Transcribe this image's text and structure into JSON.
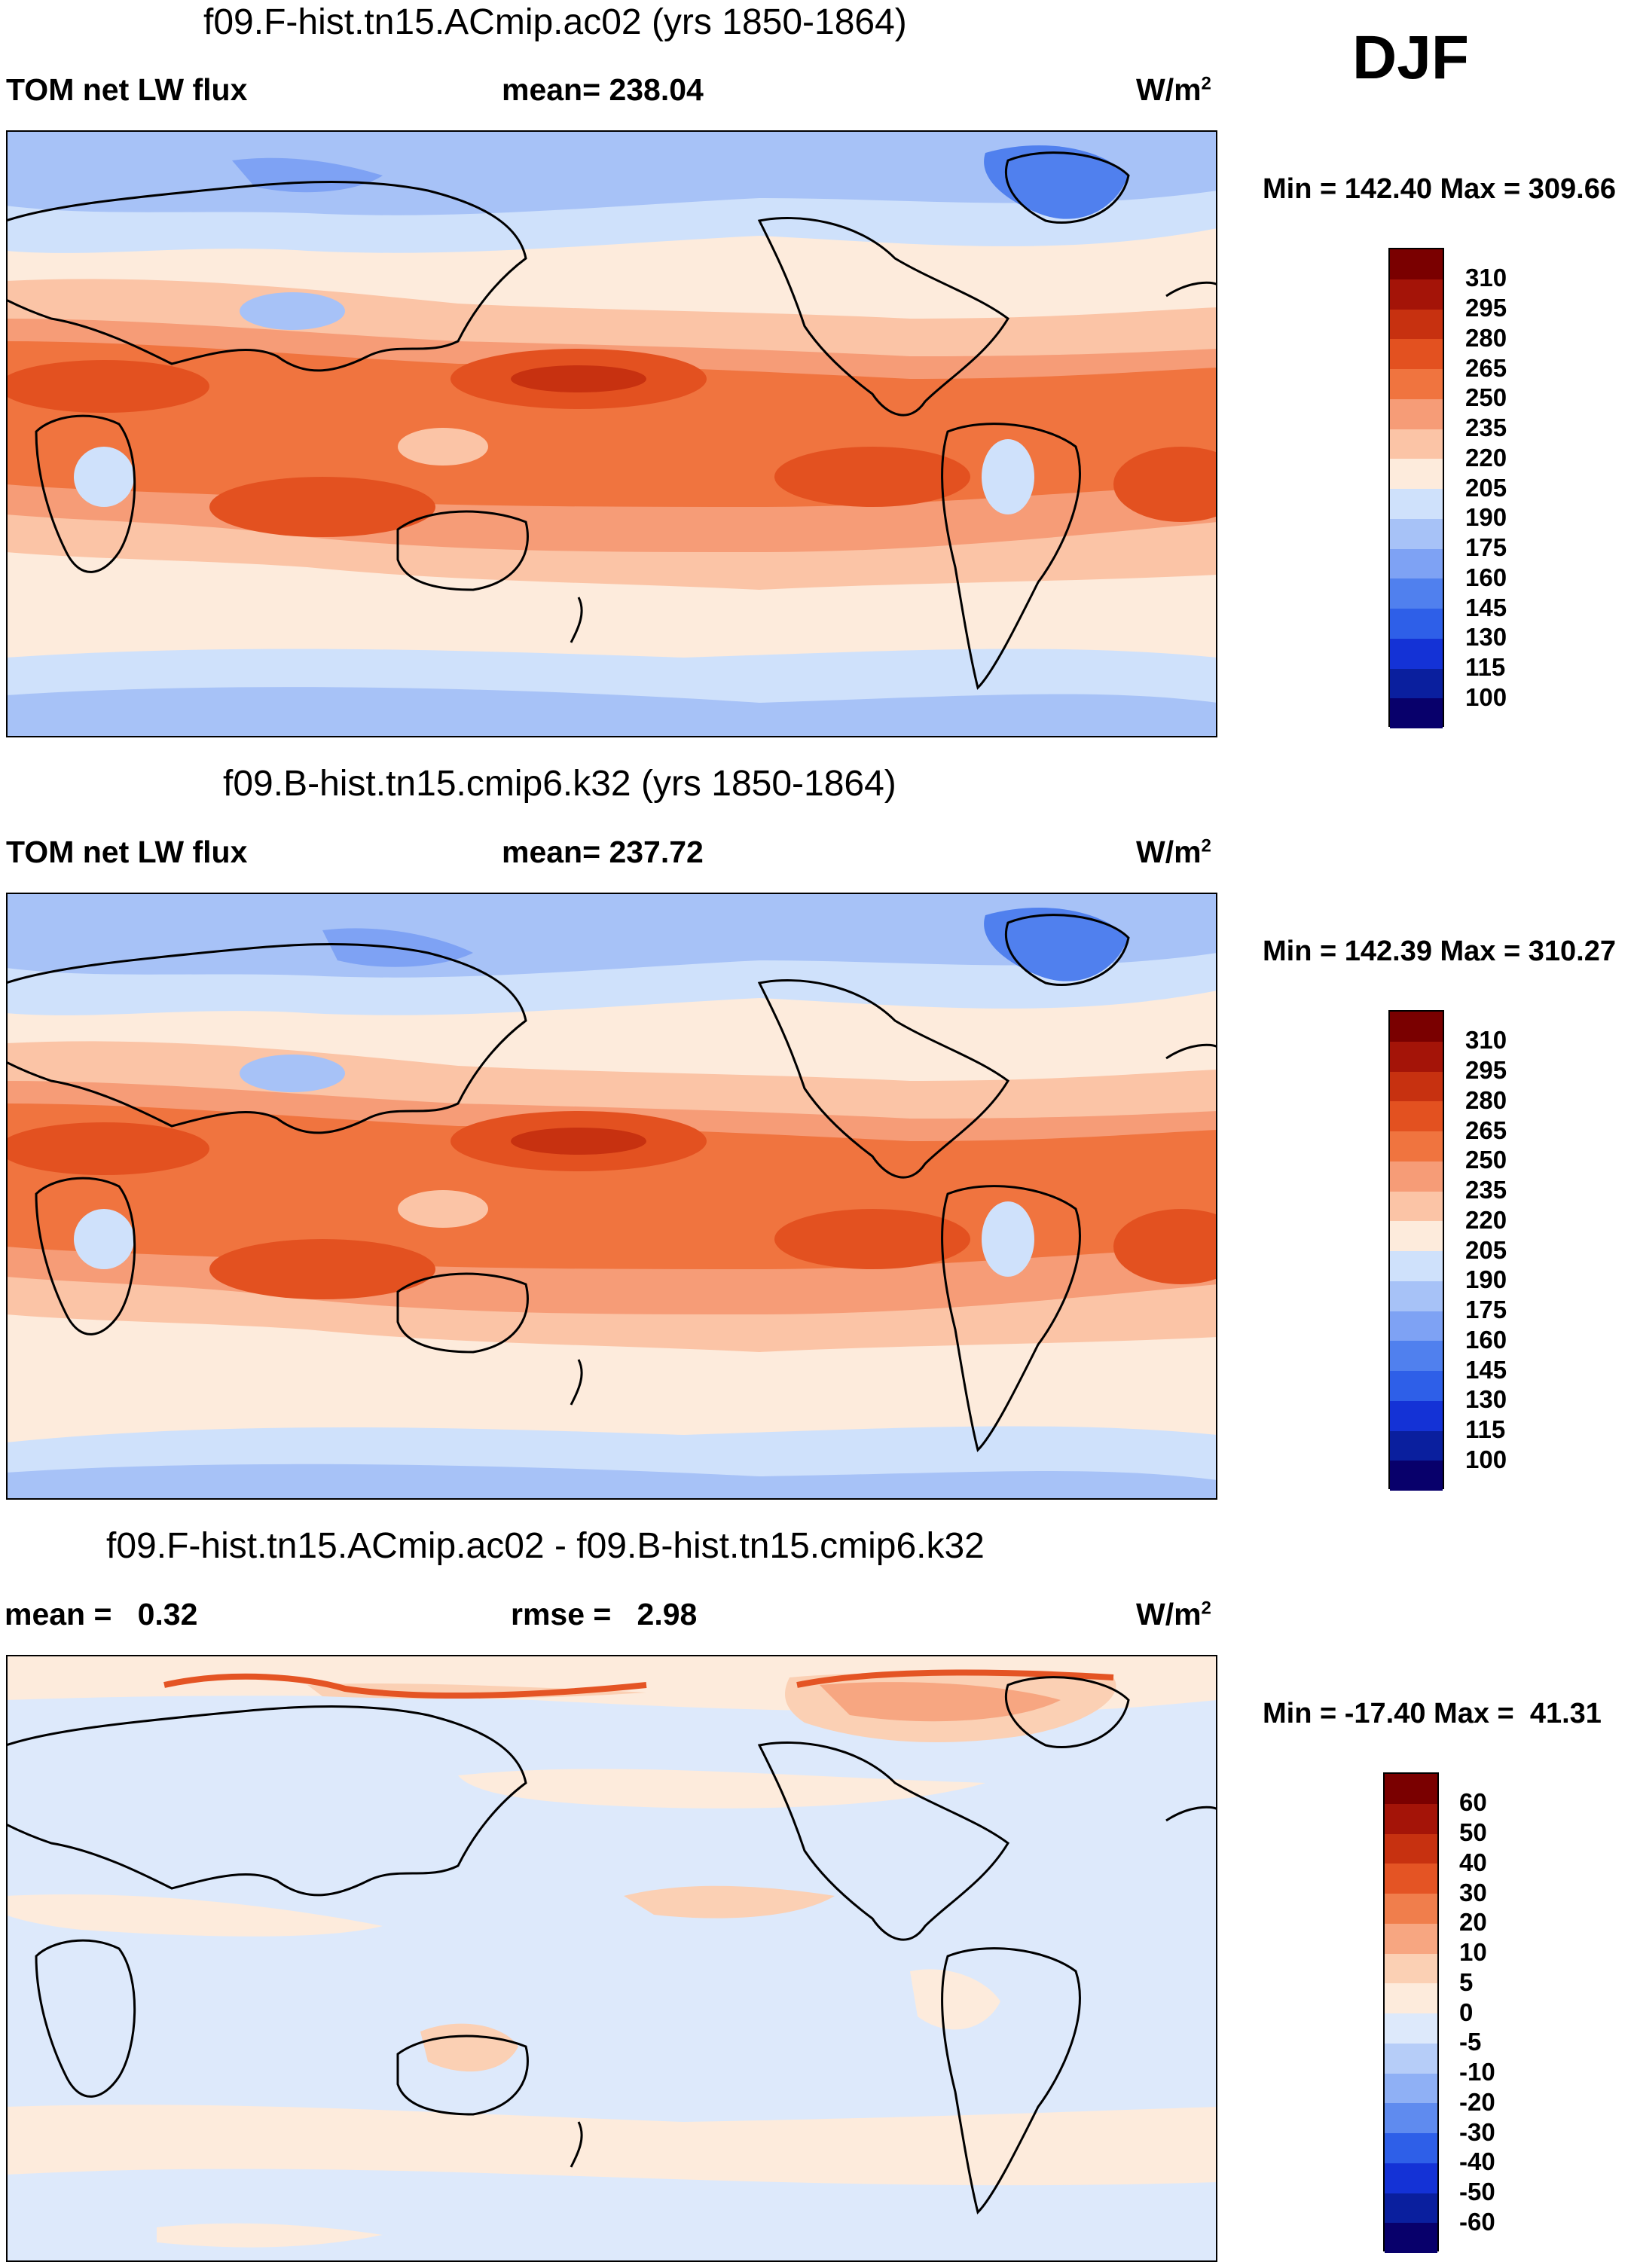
{
  "season": "DJF",
  "colors": {
    "abs_scale": [
      "#08006b",
      "#0a1f9e",
      "#1432d6",
      "#2e5fe8",
      "#5080ee",
      "#7ea2f4",
      "#a7c2f7",
      "#cfe1fb",
      "#fdebdc",
      "#fbc4a6",
      "#f69c77",
      "#f0743f",
      "#e35120",
      "#c73110",
      "#a41408",
      "#7a0000"
    ],
    "diff_scale": [
      "#08006b",
      "#0a1f9e",
      "#1432d6",
      "#2e5fe8",
      "#5f8bef",
      "#8fb0f5",
      "#b6cdf8",
      "#dde9fb",
      "#fdebdc",
      "#fbd0b4",
      "#f7a681",
      "#f07e4c",
      "#e45424",
      "#c73110",
      "#a41408",
      "#7a0000"
    ]
  },
  "panels": [
    {
      "title": "f09.F-hist.tn15.ACmip.ac02 (yrs 1850-1864)",
      "left_label": "TOM net LW flux",
      "center_label": "mean= 238.04",
      "units": "W/m",
      "units_sup": "2",
      "minmax": "Min = 142.40 Max = 309.66",
      "scale": "abs",
      "ticks": [
        "310",
        "295",
        "280",
        "265",
        "250",
        "235",
        "220",
        "205",
        "190",
        "175",
        "160",
        "145",
        "130",
        "115",
        "100"
      ]
    },
    {
      "title": "f09.B-hist.tn15.cmip6.k32 (yrs 1850-1864)",
      "left_label": "TOM net LW flux",
      "center_label": "mean= 237.72",
      "units": "W/m",
      "units_sup": "2",
      "minmax": "Min = 142.39 Max = 310.27",
      "scale": "abs",
      "ticks": [
        "310",
        "295",
        "280",
        "265",
        "250",
        "235",
        "220",
        "205",
        "190",
        "175",
        "160",
        "145",
        "130",
        "115",
        "100"
      ]
    },
    {
      "title": "f09.F-hist.tn15.ACmip.ac02 - f09.B-hist.tn15.cmip6.k32",
      "left_label": "mean =   0.32",
      "center_label": "rmse =   2.98",
      "units": "W/m",
      "units_sup": "2",
      "minmax": "Min = -17.40 Max =  41.31",
      "scale": "diff",
      "ticks": [
        "60",
        "50",
        "40",
        "30",
        "20",
        "10",
        "5",
        "0",
        "-5",
        "-10",
        "-20",
        "-30",
        "-40",
        "-50",
        "-60"
      ]
    }
  ]
}
